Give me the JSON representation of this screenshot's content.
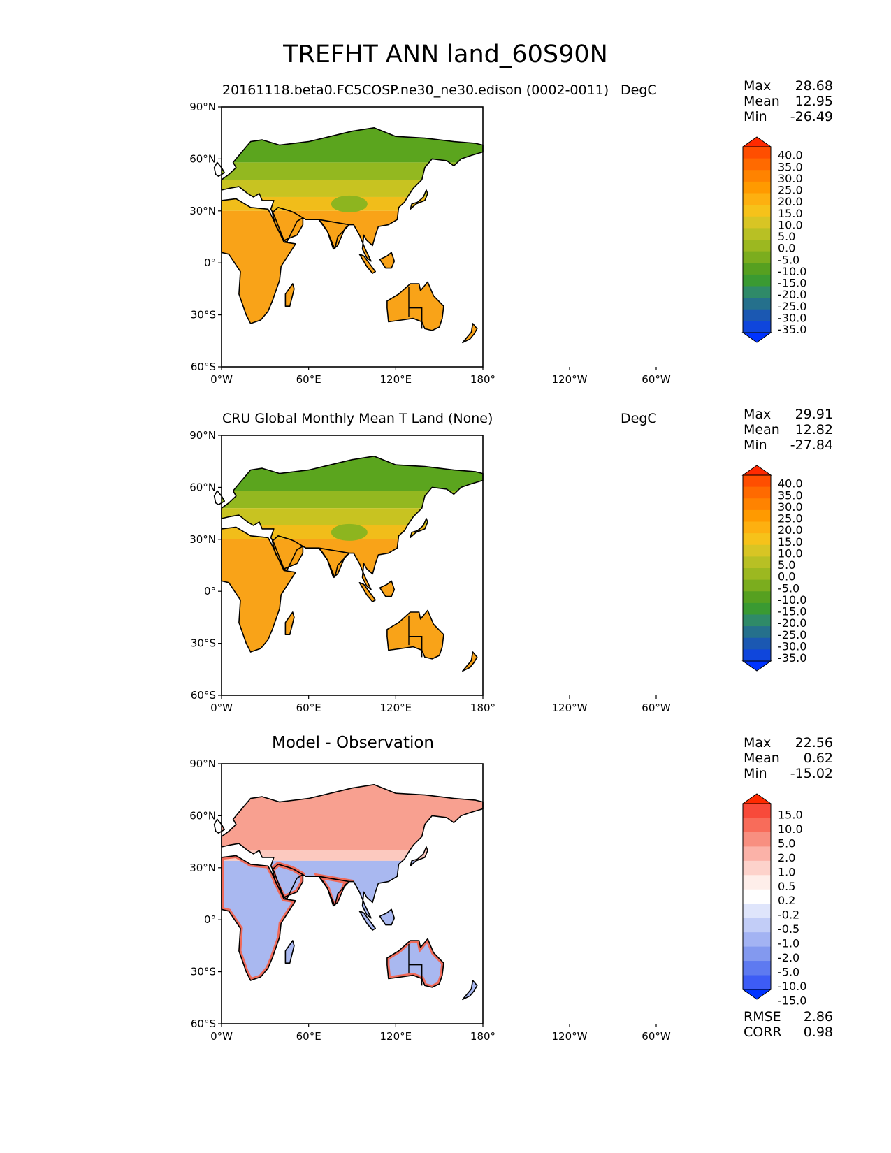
{
  "title": "TREFHT ANN land_60S90N",
  "lat_ticks": [
    "90°N",
    "60°N",
    "30°N",
    "0°",
    "30°S",
    "60°S"
  ],
  "lon_ticks": [
    "0°W",
    "60°E",
    "120°E",
    "180°",
    "120°W",
    "60°W"
  ],
  "panels": [
    {
      "subtitle": "20161118.beta0.FC5COSP.ne30_ne30.edison (0002-0011)",
      "units": "DegC",
      "stats": [
        {
          "label": "Max",
          "value": "28.68"
        },
        {
          "label": "Mean",
          "value": "12.95"
        },
        {
          "label": "Min",
          "value": "-26.49"
        }
      ],
      "colorbar_labels": [
        "40.0",
        "35.0",
        "30.0",
        "25.0",
        "20.0",
        "15.0",
        "10.0",
        "5.0",
        "0.0",
        "-5.0",
        "-10.0",
        "-15.0",
        "-20.0",
        "-25.0",
        "-30.0",
        "-35.0"
      ],
      "colorbar_colors": [
        "#ff2a00",
        "#ff4e00",
        "#ff6a00",
        "#ff8300",
        "#ff9a00",
        "#fdb010",
        "#f6c21a",
        "#d8c524",
        "#b8c024",
        "#9cb820",
        "#7bad1e",
        "#56a020",
        "#3a9a32",
        "#2f8a68",
        "#25708c",
        "#1b58b2",
        "#0f46dc",
        "#0033ff"
      ],
      "map_style": "temp"
    },
    {
      "subtitle": "CRU Global Monthly Mean T Land (None)",
      "units": "DegC",
      "stats": [
        {
          "label": "Max",
          "value": "29.91"
        },
        {
          "label": "Mean",
          "value": "12.82"
        },
        {
          "label": "Min",
          "value": "-27.84"
        }
      ],
      "colorbar_labels": [
        "40.0",
        "35.0",
        "30.0",
        "25.0",
        "20.0",
        "15.0",
        "10.0",
        "5.0",
        "0.0",
        "-5.0",
        "-10.0",
        "-15.0",
        "-20.0",
        "-25.0",
        "-30.0",
        "-35.0"
      ],
      "colorbar_colors": [
        "#ff2a00",
        "#ff4e00",
        "#ff6a00",
        "#ff8300",
        "#ff9a00",
        "#fdb010",
        "#f6c21a",
        "#d8c524",
        "#b8c024",
        "#9cb820",
        "#7bad1e",
        "#56a020",
        "#3a9a32",
        "#2f8a68",
        "#25708c",
        "#1b58b2",
        "#0f46dc",
        "#0033ff"
      ],
      "map_style": "temp"
    },
    {
      "subtitle": "Model - Observation",
      "units": "",
      "stats": [
        {
          "label": "Max",
          "value": "22.56"
        },
        {
          "label": "Mean",
          "value": "0.62"
        },
        {
          "label": "Min",
          "value": "-15.02"
        }
      ],
      "colorbar_labels": [
        "15.0",
        "10.0",
        "5.0",
        "2.0",
        "1.0",
        "0.5",
        "0.2",
        "-0.2",
        "-0.5",
        "-1.0",
        "-2.0",
        "-5.0",
        "-10.0",
        "-15.0"
      ],
      "colorbar_colors": [
        "#ff2a00",
        "#f84a3a",
        "#f86c5a",
        "#f88f80",
        "#fbb2a8",
        "#fdd2cb",
        "#feeeea",
        "#ffffff",
        "#dfe5fb",
        "#c2cdf7",
        "#a3b3f3",
        "#8399ef",
        "#5e7af0",
        "#3d5cf5",
        "#0033ff"
      ],
      "map_style": "diff",
      "extra_stats": [
        {
          "label": "RMSE",
          "value": "2.86"
        },
        {
          "label": "CORR",
          "value": "0.98"
        }
      ]
    }
  ]
}
